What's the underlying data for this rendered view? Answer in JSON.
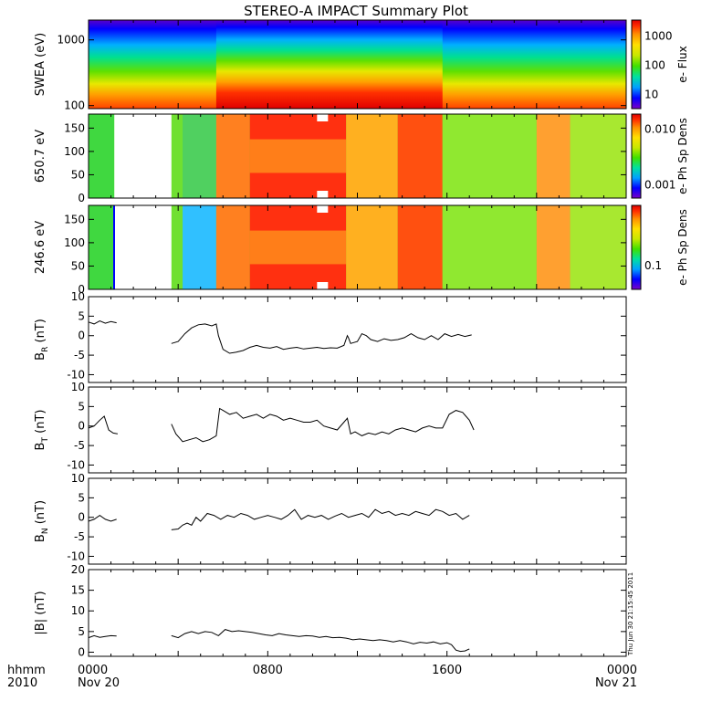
{
  "title": "STEREO-A IMPACT Summary Plot",
  "time_axis": {
    "label_lines": [
      "hhmm",
      "2010"
    ],
    "ticks": [
      {
        "t": 0,
        "lines": [
          "0000",
          "Nov 20"
        ]
      },
      {
        "t": 8,
        "lines": [
          "0800",
          ""
        ]
      },
      {
        "t": 16,
        "lines": [
          "1600",
          ""
        ]
      },
      {
        "t": 24,
        "lines": [
          "0000",
          "Nov 21"
        ]
      }
    ],
    "range_hours": [
      0,
      24
    ]
  },
  "timestamp": "Thu Jun 30 21:15:45 2011",
  "colors": {
    "line": "#000000",
    "background": "#ffffff",
    "colorbar": [
      "#7a00c8",
      "#0000ff",
      "#00a0ff",
      "#00e0a0",
      "#40e000",
      "#c8e800",
      "#ffe000",
      "#ff9000",
      "#ff3000",
      "#e00000"
    ]
  },
  "chart_data": [
    {
      "type": "heatmap",
      "id": "swea",
      "ylabel": "SWEA (eV)",
      "y_scale": "log",
      "ylim": [
        90,
        2000
      ],
      "yticks": [
        {
          "v": 100,
          "label": "100"
        },
        {
          "v": 1000,
          "label": "1000"
        }
      ],
      "colorbar": {
        "label": "e- Flux",
        "ticks": [
          "1000",
          "100",
          "10"
        ]
      },
      "description_values": {
        "gap_hours": [],
        "enhanced_intervals_hours": [
          [
            5.7,
            15.8
          ]
        ]
      }
    },
    {
      "type": "heatmap",
      "id": "pad650",
      "ylabel": "650.7 eV",
      "ylim": [
        0,
        180
      ],
      "yticks": [
        {
          "v": 0,
          "label": "0"
        },
        {
          "v": 50,
          "label": "50"
        },
        {
          "v": 100,
          "label": "100"
        },
        {
          "v": 150,
          "label": "150"
        }
      ],
      "colorbar": {
        "label": "e- Ph Sp Dens",
        "ticks": [
          "0.010",
          "0.001"
        ]
      },
      "description_values": {
        "gap_hours": [
          [
            1.15,
            3.7
          ]
        ],
        "enhanced_intervals_hours": [
          [
            5.7,
            15.8
          ],
          [
            20.0,
            21.5
          ]
        ]
      }
    },
    {
      "type": "heatmap",
      "id": "pad246",
      "ylabel": "246.6 eV",
      "ylim": [
        0,
        180
      ],
      "yticks": [
        {
          "v": 0,
          "label": "0"
        },
        {
          "v": 50,
          "label": "50"
        },
        {
          "v": 100,
          "label": "100"
        },
        {
          "v": 150,
          "label": "150"
        }
      ],
      "colorbar": {
        "label": "e- Ph Sp Dens",
        "ticks": [
          "0.1"
        ]
      },
      "description_values": {
        "gap_hours": [
          [
            1.15,
            3.7
          ]
        ],
        "enhanced_intervals_hours": [
          [
            5.7,
            15.8
          ],
          [
            20.0,
            21.5
          ]
        ]
      }
    },
    {
      "type": "line",
      "id": "br",
      "ylabel": "B",
      "ylabel_sub": "R",
      "ylabel_unit": "(nT)",
      "ylim": [
        -12,
        10
      ],
      "yticks": [
        {
          "v": -10,
          "label": "-10"
        },
        {
          "v": -5,
          "label": "-5"
        },
        {
          "v": 0,
          "label": "0"
        },
        {
          "v": 5,
          "label": "5"
        },
        {
          "v": 10,
          "label": "10"
        }
      ],
      "segments": [
        {
          "x": [
            0.0,
            0.25,
            0.5,
            0.75,
            1.0,
            1.25
          ],
          "y": [
            3.5,
            3.0,
            3.8,
            3.2,
            3.6,
            3.3
          ]
        },
        {
          "x": [
            3.7,
            4.0,
            4.3,
            4.6,
            4.9,
            5.2,
            5.5,
            5.7,
            5.8,
            6.0,
            6.3,
            6.6,
            6.9,
            7.2,
            7.5,
            7.8,
            8.1,
            8.4,
            8.7,
            9.0,
            9.3,
            9.6,
            9.9,
            10.2,
            10.5,
            10.8,
            11.1,
            11.4,
            11.55,
            11.6,
            11.7,
            12.0,
            12.2,
            12.4,
            12.6,
            12.9,
            13.2,
            13.5,
            13.8,
            14.1,
            14.4,
            14.7,
            15.0,
            15.3,
            15.6,
            15.9,
            16.2,
            16.5,
            16.8,
            17.1
          ],
          "y": [
            -2.0,
            -1.5,
            0.5,
            2.0,
            2.8,
            3.0,
            2.5,
            3.0,
            0.0,
            -3.5,
            -4.5,
            -4.2,
            -3.8,
            -3.0,
            -2.5,
            -3.0,
            -3.2,
            -2.8,
            -3.5,
            -3.2,
            -3.0,
            -3.4,
            -3.2,
            -3.0,
            -3.3,
            -3.1,
            -3.2,
            -2.5,
            0.0,
            -0.5,
            -2.0,
            -1.5,
            0.5,
            0.0,
            -1.0,
            -1.5,
            -0.8,
            -1.2,
            -1.0,
            -0.5,
            0.5,
            -0.5,
            -1.0,
            0.0,
            -1.0,
            0.5,
            -0.2,
            0.3,
            -0.2,
            0.2
          ]
        }
      ]
    },
    {
      "type": "line",
      "id": "bt",
      "ylabel": "B",
      "ylabel_sub": "T",
      "ylabel_unit": "(nT)",
      "ylim": [
        -12,
        10
      ],
      "yticks": [
        {
          "v": -10,
          "label": "-10"
        },
        {
          "v": -5,
          "label": "-5"
        },
        {
          "v": 0,
          "label": "0"
        },
        {
          "v": 5,
          "label": "5"
        },
        {
          "v": 10,
          "label": "10"
        }
      ],
      "segments": [
        {
          "x": [
            0.0,
            0.25,
            0.5,
            0.7,
            0.9,
            1.1,
            1.3
          ],
          "y": [
            -0.5,
            0.0,
            1.5,
            2.5,
            -1.0,
            -1.8,
            -2.0
          ]
        },
        {
          "x": [
            3.7,
            3.9,
            4.2,
            4.5,
            4.8,
            5.1,
            5.4,
            5.7,
            5.85,
            6.0,
            6.3,
            6.6,
            6.9,
            7.2,
            7.5,
            7.8,
            8.1,
            8.4,
            8.7,
            9.0,
            9.3,
            9.6,
            9.9,
            10.2,
            10.5,
            10.8,
            11.1,
            11.4,
            11.55,
            11.7,
            11.9,
            12.2,
            12.5,
            12.8,
            13.1,
            13.4,
            13.7,
            14.0,
            14.3,
            14.6,
            14.9,
            15.2,
            15.5,
            15.8,
            16.1,
            16.4,
            16.7,
            17.0,
            17.2
          ],
          "y": [
            0.5,
            -2.0,
            -4.0,
            -3.5,
            -3.0,
            -4.0,
            -3.5,
            -2.5,
            4.5,
            4.0,
            3.0,
            3.5,
            2.0,
            2.5,
            3.0,
            2.0,
            3.0,
            2.5,
            1.5,
            2.0,
            1.5,
            1.0,
            1.0,
            1.5,
            0.0,
            -0.5,
            -1.0,
            1.0,
            2.0,
            -2.0,
            -1.5,
            -2.5,
            -1.8,
            -2.2,
            -1.5,
            -2.0,
            -1.0,
            -0.5,
            -1.0,
            -1.5,
            -0.5,
            0.0,
            -0.5,
            -0.5,
            3.0,
            4.0,
            3.5,
            1.5,
            -1.0
          ]
        }
      ]
    },
    {
      "type": "line",
      "id": "bn",
      "ylabel": "B",
      "ylabel_sub": "N",
      "ylabel_unit": "(nT)",
      "ylim": [
        -12,
        10
      ],
      "yticks": [
        {
          "v": -10,
          "label": "-10"
        },
        {
          "v": -5,
          "label": "-5"
        },
        {
          "v": 0,
          "label": "0"
        },
        {
          "v": 5,
          "label": "5"
        },
        {
          "v": 10,
          "label": "10"
        }
      ],
      "segments": [
        {
          "x": [
            0.0,
            0.25,
            0.5,
            0.75,
            1.0,
            1.25
          ],
          "y": [
            -1.0,
            -0.5,
            0.5,
            -0.5,
            -1.0,
            -0.5
          ]
        },
        {
          "x": [
            3.7,
            4.0,
            4.2,
            4.4,
            4.6,
            4.8,
            5.0,
            5.3,
            5.6,
            5.9,
            6.2,
            6.5,
            6.8,
            7.1,
            7.4,
            7.7,
            8.0,
            8.3,
            8.6,
            8.9,
            9.2,
            9.5,
            9.8,
            10.1,
            10.4,
            10.7,
            11.0,
            11.3,
            11.6,
            11.9,
            12.2,
            12.5,
            12.8,
            13.1,
            13.4,
            13.7,
            14.0,
            14.3,
            14.6,
            14.9,
            15.2,
            15.5,
            15.8,
            16.1,
            16.4,
            16.7,
            17.0
          ],
          "y": [
            -3.2,
            -3.0,
            -2.0,
            -1.5,
            -2.0,
            0.0,
            -1.0,
            1.0,
            0.5,
            -0.5,
            0.5,
            0.0,
            1.0,
            0.5,
            -0.5,
            0.0,
            0.5,
            0.0,
            -0.5,
            0.5,
            2.0,
            -0.5,
            0.5,
            0.0,
            0.5,
            -0.5,
            0.3,
            1.0,
            0.0,
            0.5,
            1.0,
            0.0,
            2.0,
            1.0,
            1.5,
            0.5,
            1.0,
            0.5,
            1.5,
            1.0,
            0.5,
            2.0,
            1.5,
            0.5,
            1.0,
            -0.5,
            0.5
          ]
        }
      ]
    },
    {
      "type": "line",
      "id": "bmag",
      "ylabel": "|B|",
      "ylabel_sub": "",
      "ylabel_unit": "(nT)",
      "ylim": [
        -1,
        20
      ],
      "yticks": [
        {
          "v": 0,
          "label": "0"
        },
        {
          "v": 5,
          "label": "5"
        },
        {
          "v": 10,
          "label": "10"
        },
        {
          "v": 15,
          "label": "15"
        },
        {
          "v": 20,
          "label": "20"
        }
      ],
      "segments": [
        {
          "x": [
            0.0,
            0.25,
            0.5,
            0.75,
            1.0,
            1.25
          ],
          "y": [
            3.5,
            4.0,
            3.6,
            3.8,
            4.0,
            3.9
          ]
        },
        {
          "x": [
            3.7,
            4.0,
            4.3,
            4.6,
            4.9,
            5.2,
            5.5,
            5.8,
            6.1,
            6.4,
            6.7,
            7.0,
            7.3,
            7.6,
            7.9,
            8.2,
            8.5,
            8.8,
            9.1,
            9.4,
            9.7,
            10.0,
            10.3,
            10.6,
            10.9,
            11.2,
            11.5,
            11.8,
            12.1,
            12.4,
            12.7,
            13.0,
            13.3,
            13.6,
            13.9,
            14.2,
            14.5,
            14.8,
            15.1,
            15.4,
            15.7,
            16.0,
            16.2,
            16.4,
            16.6,
            16.8,
            17.0
          ],
          "y": [
            4.0,
            3.5,
            4.5,
            5.0,
            4.5,
            5.0,
            4.8,
            4.0,
            5.5,
            5.0,
            5.2,
            5.0,
            4.8,
            4.5,
            4.2,
            4.0,
            4.5,
            4.2,
            4.0,
            3.8,
            4.0,
            3.9,
            3.6,
            3.8,
            3.5,
            3.6,
            3.4,
            3.0,
            3.2,
            3.0,
            2.8,
            3.0,
            2.8,
            2.5,
            2.8,
            2.5,
            2.0,
            2.4,
            2.2,
            2.5,
            2.0,
            2.3,
            1.8,
            0.5,
            0.2,
            0.3,
            0.8
          ]
        }
      ]
    }
  ]
}
